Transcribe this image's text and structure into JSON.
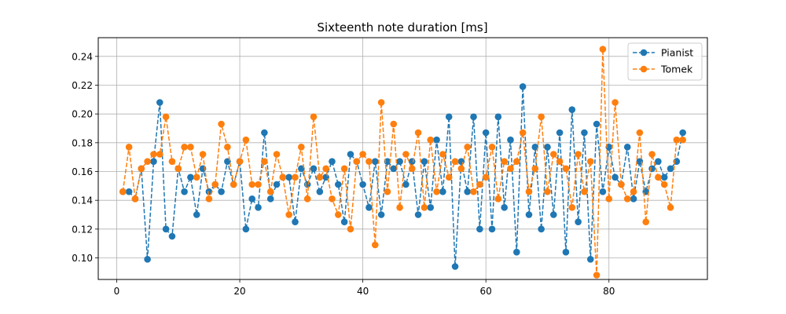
{
  "chart_data": {
    "type": "line",
    "title": "Sixteenth note duration [ms]",
    "xlabel": "",
    "ylabel": "",
    "xlim": [
      -3,
      96
    ],
    "ylim": [
      0.085,
      0.253
    ],
    "xticks": [
      0,
      20,
      40,
      60,
      80
    ],
    "yticks": [
      0.1,
      0.12,
      0.14,
      0.16,
      0.18,
      0.2,
      0.22,
      0.24
    ],
    "grid": true,
    "legend_position": "top-right",
    "series": [
      {
        "name": "Pianist",
        "color": "#1f77b4",
        "linestyle": "dashed",
        "marker": "circle",
        "x": [
          1,
          2,
          3,
          4,
          5,
          6,
          7,
          8,
          9,
          10,
          11,
          12,
          13,
          14,
          15,
          16,
          17,
          18,
          19,
          20,
          21,
          22,
          23,
          24,
          25,
          26,
          27,
          28,
          29,
          30,
          31,
          32,
          33,
          34,
          35,
          36,
          37,
          38,
          39,
          40,
          41,
          42,
          43,
          44,
          45,
          46,
          47,
          48,
          49,
          50,
          51,
          52,
          53,
          54,
          55,
          56,
          57,
          58,
          59,
          60,
          61,
          62,
          63,
          64,
          65,
          66,
          67,
          68,
          69,
          70,
          71,
          72,
          73,
          74,
          75,
          76,
          77,
          78,
          79,
          80,
          81,
          82,
          83,
          84,
          85,
          86,
          87,
          88,
          89,
          90,
          91,
          92
        ],
        "y": [
          0.146,
          0.146,
          0.141,
          0.162,
          0.099,
          0.167,
          0.208,
          0.12,
          0.115,
          0.162,
          0.146,
          0.156,
          0.13,
          0.162,
          0.146,
          0.151,
          0.146,
          0.167,
          0.151,
          0.167,
          0.12,
          0.141,
          0.135,
          0.187,
          0.141,
          0.151,
          0.156,
          0.156,
          0.125,
          0.162,
          0.151,
          0.162,
          0.146,
          0.156,
          0.167,
          0.151,
          0.125,
          0.172,
          0.167,
          0.151,
          0.135,
          0.167,
          0.13,
          0.167,
          0.162,
          0.167,
          0.151,
          0.167,
          0.13,
          0.167,
          0.135,
          0.182,
          0.146,
          0.198,
          0.094,
          0.167,
          0.146,
          0.198,
          0.12,
          0.187,
          0.12,
          0.198,
          0.135,
          0.182,
          0.104,
          0.219,
          0.13,
          0.177,
          0.12,
          0.177,
          0.13,
          0.187,
          0.104,
          0.203,
          0.125,
          0.187,
          0.099,
          0.193,
          0.146,
          0.177,
          0.156,
          0.151,
          0.177,
          0.141,
          0.167,
          0.146,
          0.162,
          0.167,
          0.156,
          0.162,
          0.167,
          0.187
        ]
      },
      {
        "name": "Tomek",
        "color": "#ff7f0e",
        "linestyle": "dashed",
        "marker": "circle",
        "x": [
          1,
          2,
          3,
          4,
          5,
          6,
          7,
          8,
          9,
          10,
          11,
          12,
          13,
          14,
          15,
          16,
          17,
          18,
          19,
          20,
          21,
          22,
          23,
          24,
          25,
          26,
          27,
          28,
          29,
          30,
          31,
          32,
          33,
          34,
          35,
          36,
          37,
          38,
          39,
          40,
          41,
          42,
          43,
          44,
          45,
          46,
          47,
          48,
          49,
          50,
          51,
          52,
          53,
          54,
          55,
          56,
          57,
          58,
          59,
          60,
          61,
          62,
          63,
          64,
          65,
          66,
          67,
          68,
          69,
          70,
          71,
          72,
          73,
          74,
          75,
          76,
          77,
          78,
          79,
          80,
          81,
          82,
          83,
          84,
          85,
          86,
          87,
          88,
          89,
          90,
          91,
          92
        ],
        "y": [
          0.146,
          0.177,
          0.141,
          0.162,
          0.167,
          0.172,
          0.172,
          0.198,
          0.167,
          0.162,
          0.177,
          0.177,
          0.156,
          0.172,
          0.141,
          0.151,
          0.193,
          0.177,
          0.151,
          0.167,
          0.182,
          0.151,
          0.151,
          0.167,
          0.146,
          0.172,
          0.156,
          0.13,
          0.156,
          0.177,
          0.141,
          0.198,
          0.156,
          0.162,
          0.141,
          0.13,
          0.162,
          0.12,
          0.167,
          0.172,
          0.167,
          0.109,
          0.208,
          0.146,
          0.193,
          0.135,
          0.172,
          0.162,
          0.187,
          0.135,
          0.182,
          0.146,
          0.172,
          0.156,
          0.167,
          0.162,
          0.177,
          0.146,
          0.151,
          0.156,
          0.177,
          0.141,
          0.167,
          0.162,
          0.167,
          0.187,
          0.146,
          0.162,
          0.198,
          0.146,
          0.172,
          0.167,
          0.162,
          0.135,
          0.172,
          0.146,
          0.167,
          0.088,
          0.245,
          0.141,
          0.208,
          0.151,
          0.141,
          0.146,
          0.187,
          0.125,
          0.172,
          0.156,
          0.151,
          0.135,
          0.182,
          0.182
        ]
      }
    ]
  }
}
